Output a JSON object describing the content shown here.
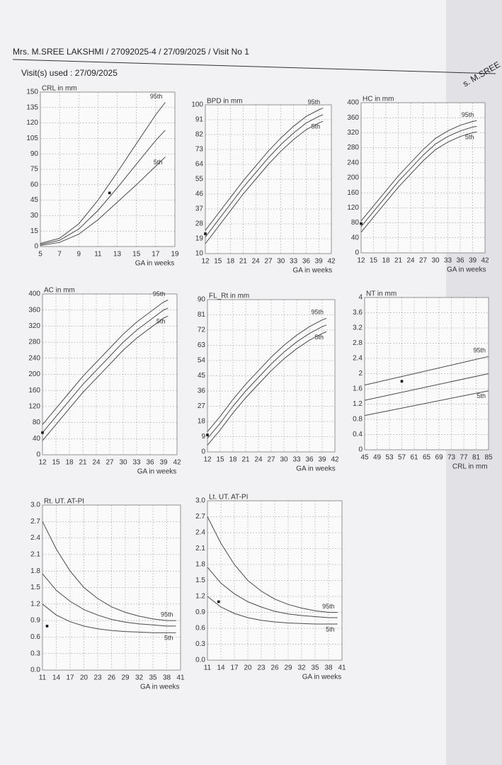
{
  "header": {
    "patient": "Mrs. M.SREE LAKSHMI / 27092025-4 / 27/09/2025 /  Visit No 1",
    "visits": "Visit(s) used : 27/09/2025",
    "side_label": "s. M.SREE"
  },
  "chart_data": [
    {
      "type": "line",
      "title": "CRL in mm",
      "x_label": "GA in weeks",
      "line_color": "#4a4a4a",
      "xlim": [
        5,
        19
      ],
      "xticks": [
        5,
        7,
        9,
        11,
        13,
        15,
        17,
        19
      ],
      "ylim": [
        0,
        150
      ],
      "yticks": [
        0,
        15,
        30,
        45,
        60,
        75,
        90,
        105,
        120,
        135,
        150
      ],
      "grid": true,
      "x": [
        5,
        7,
        9,
        11,
        13,
        15,
        17,
        18
      ],
      "series": [
        {
          "name": "95th",
          "values": [
            3,
            8,
            22,
            45,
            72,
            100,
            128,
            140
          ]
        },
        {
          "values": [
            2,
            6,
            17,
            35,
            57,
            80,
            103,
            113
          ]
        },
        {
          "name": "5th",
          "values": [
            1,
            4,
            12,
            26,
            43,
            60,
            78,
            87
          ]
        }
      ],
      "point": {
        "x": 12.2,
        "y": 52
      }
    },
    {
      "type": "line",
      "title": "BPD in mm",
      "x_label": "GA in weeks",
      "line_color": "#4a4a4a",
      "xlim": [
        12,
        42
      ],
      "xticks": [
        12,
        15,
        18,
        21,
        24,
        27,
        30,
        33,
        36,
        39,
        42
      ],
      "ylim": [
        10,
        100
      ],
      "yticks": [
        10,
        19,
        28,
        37,
        46,
        55,
        64,
        73,
        82,
        91,
        100
      ],
      "grid": true,
      "x": [
        12,
        15,
        18,
        21,
        24,
        27,
        30,
        33,
        36,
        39,
        40
      ],
      "series": [
        {
          "name": "95th",
          "values": [
            24,
            34,
            44,
            54,
            63,
            72,
            80,
            87,
            93,
            97,
            98
          ]
        },
        {
          "values": [
            20,
            30,
            40,
            50,
            59,
            68,
            76,
            83,
            89,
            93,
            94
          ]
        },
        {
          "name": "5th",
          "values": [
            16,
            26,
            36,
            46,
            55,
            64,
            72,
            79,
            85,
            89,
            90
          ]
        }
      ],
      "point": {
        "x": 12,
        "y": 22
      }
    },
    {
      "type": "line",
      "title": "HC in mm",
      "x_label": "GA in weeks",
      "line_color": "#4a4a4a",
      "xlim": [
        12,
        42
      ],
      "xticks": [
        12,
        15,
        18,
        21,
        24,
        27,
        30,
        33,
        36,
        39,
        42
      ],
      "ylim": [
        0,
        400
      ],
      "yticks": [
        0,
        40,
        80,
        120,
        160,
        200,
        240,
        280,
        320,
        360,
        400
      ],
      "grid": true,
      "x": [
        12,
        15,
        18,
        21,
        24,
        27,
        30,
        33,
        36,
        39,
        40
      ],
      "series": [
        {
          "name": "95th",
          "values": [
            85,
            125,
            165,
            205,
            240,
            275,
            305,
            325,
            340,
            350,
            352
          ]
        },
        {
          "values": [
            70,
            110,
            150,
            190,
            225,
            260,
            290,
            310,
            325,
            335,
            337
          ]
        },
        {
          "name": "5th",
          "values": [
            55,
            95,
            135,
            175,
            210,
            245,
            275,
            295,
            310,
            320,
            322
          ]
        }
      ],
      "point": {
        "x": 12,
        "y": 78
      }
    },
    {
      "type": "line",
      "title": "AC in mm",
      "x_label": "GA in weeks",
      "line_color": "#4a4a4a",
      "xlim": [
        12,
        42
      ],
      "xticks": [
        12,
        15,
        18,
        21,
        24,
        27,
        30,
        33,
        36,
        39,
        42
      ],
      "ylim": [
        0,
        400
      ],
      "yticks": [
        0,
        40,
        80,
        120,
        160,
        200,
        240,
        280,
        320,
        360,
        400
      ],
      "grid": true,
      "x": [
        12,
        15,
        18,
        21,
        24,
        27,
        30,
        33,
        36,
        39,
        40
      ],
      "series": [
        {
          "name": "95th",
          "values": [
            75,
            115,
            155,
            195,
            230,
            265,
            300,
            330,
            355,
            380,
            385
          ]
        },
        {
          "values": [
            55,
            95,
            135,
            175,
            210,
            245,
            280,
            310,
            335,
            360,
            365
          ]
        },
        {
          "name": "5th",
          "values": [
            35,
            75,
            115,
            155,
            190,
            225,
            260,
            290,
            315,
            340,
            345
          ]
        }
      ],
      "point": {
        "x": 12,
        "y": 55
      }
    },
    {
      "type": "line",
      "title": "FL_Rt in mm",
      "x_label": "GA in weeks",
      "line_color": "#4a4a4a",
      "xlim": [
        12,
        42
      ],
      "xticks": [
        12,
        15,
        18,
        21,
        24,
        27,
        30,
        33,
        36,
        39,
        42
      ],
      "ylim": [
        0,
        90
      ],
      "yticks": [
        0,
        9,
        18,
        27,
        36,
        45,
        54,
        63,
        72,
        81,
        90
      ],
      "grid": true,
      "x": [
        12,
        15,
        18,
        21,
        24,
        27,
        30,
        33,
        36,
        39,
        40
      ],
      "series": [
        {
          "name": "95th",
          "values": [
            12,
            21,
            31,
            40,
            48,
            56,
            63,
            69,
            74,
            78,
            79
          ]
        },
        {
          "values": [
            8,
            17,
            27,
            36,
            44,
            52,
            59,
            65,
            70,
            74,
            75
          ]
        },
        {
          "name": "5th",
          "values": [
            4,
            13,
            23,
            32,
            40,
            48,
            55,
            61,
            66,
            70,
            71
          ]
        }
      ],
      "point": {
        "x": 12,
        "y": 10
      }
    },
    {
      "type": "line",
      "title": "NT in mm",
      "x_label": "CRL in mm",
      "line_color": "#4a4a4a",
      "xlim": [
        45,
        85
      ],
      "xticks": [
        45,
        49,
        53,
        57,
        61,
        65,
        69,
        73,
        77,
        81,
        85
      ],
      "ylim": [
        0,
        4
      ],
      "yticks": [
        0,
        0.4,
        0.8,
        1.2,
        1.6,
        2,
        2.4,
        2.8,
        3.2,
        3.6,
        4
      ],
      "grid": true,
      "x": [
        45,
        85
      ],
      "series": [
        {
          "name": "95th",
          "values": [
            1.7,
            2.45
          ]
        },
        {
          "values": [
            1.3,
            2.0
          ]
        },
        {
          "name": "5th",
          "values": [
            0.9,
            1.55
          ]
        }
      ],
      "point": {
        "x": 57,
        "y": 1.8
      }
    },
    {
      "type": "line",
      "title": "Rt. UT. AT-PI",
      "x_label": "GA in weeks",
      "line_color": "#4a4a4a",
      "xlim": [
        11,
        41
      ],
      "xticks": [
        11,
        14,
        17,
        20,
        23,
        26,
        29,
        32,
        35,
        38,
        41
      ],
      "ylim": [
        0,
        3
      ],
      "yticks": [
        {
          "value": 0,
          "label": "0.0"
        },
        0.3,
        0.6,
        0.9,
        1.2,
        1.5,
        1.8,
        2.1,
        2.4,
        2.7,
        {
          "value": 3,
          "label": "3.0"
        }
      ],
      "grid": true,
      "x": [
        11,
        14,
        17,
        20,
        23,
        26,
        29,
        32,
        35,
        38,
        40
      ],
      "series": [
        {
          "name": "95th",
          "values": [
            2.7,
            2.2,
            1.8,
            1.5,
            1.3,
            1.15,
            1.05,
            0.98,
            0.93,
            0.9,
            0.9
          ]
        },
        {
          "values": [
            1.75,
            1.45,
            1.25,
            1.1,
            1.0,
            0.92,
            0.87,
            0.84,
            0.82,
            0.8,
            0.8
          ]
        },
        {
          "name": "5th",
          "values": [
            1.2,
            1.0,
            0.88,
            0.8,
            0.75,
            0.72,
            0.7,
            0.69,
            0.68,
            0.68,
            0.68
          ]
        }
      ],
      "point": {
        "x": 12,
        "y": 0.8
      }
    },
    {
      "type": "line",
      "title": "Lt. UT. AT-PI",
      "x_label": "GA in weeks",
      "line_color": "#4a4a4a",
      "xlim": [
        11,
        41
      ],
      "xticks": [
        11,
        14,
        17,
        20,
        23,
        26,
        29,
        32,
        35,
        38,
        41
      ],
      "ylim": [
        0,
        3
      ],
      "yticks": [
        {
          "value": 0,
          "label": "0.0"
        },
        0.3,
        0.6,
        0.9,
        1.2,
        1.5,
        1.8,
        2.1,
        2.4,
        2.7,
        {
          "value": 3,
          "label": "3.0"
        }
      ],
      "grid": true,
      "x": [
        11,
        14,
        17,
        20,
        23,
        26,
        29,
        32,
        35,
        38,
        40
      ],
      "series": [
        {
          "name": "95th",
          "values": [
            2.7,
            2.2,
            1.8,
            1.5,
            1.3,
            1.15,
            1.05,
            0.98,
            0.93,
            0.9,
            0.9
          ]
        },
        {
          "values": [
            1.75,
            1.45,
            1.25,
            1.1,
            1.0,
            0.92,
            0.87,
            0.84,
            0.82,
            0.8,
            0.8
          ]
        },
        {
          "name": "5th",
          "values": [
            1.2,
            1.0,
            0.88,
            0.8,
            0.75,
            0.72,
            0.7,
            0.69,
            0.68,
            0.68,
            0.68
          ]
        }
      ],
      "point": {
        "x": 13.5,
        "y": 1.1
      }
    }
  ]
}
